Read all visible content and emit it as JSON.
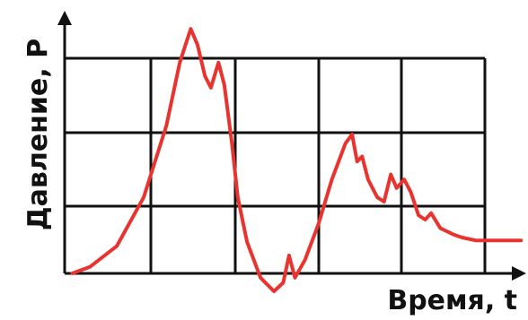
{
  "chart_data": {
    "type": "line",
    "xlabel": "Время, t",
    "ylabel": "Давление, P",
    "color": "#e8332f",
    "xlim": [
      0,
      5
    ],
    "ylim": [
      0,
      3
    ],
    "grid": true,
    "x": [
      0.09,
      0.3,
      0.62,
      0.94,
      1.21,
      1.37,
      1.5,
      1.58,
      1.67,
      1.74,
      1.83,
      1.9,
      1.99,
      2.06,
      2.17,
      2.33,
      2.49,
      2.6,
      2.67,
      2.74,
      2.86,
      3.02,
      3.18,
      3.34,
      3.42,
      3.48,
      3.54,
      3.61,
      3.72,
      3.8,
      3.88,
      3.95,
      4.04,
      4.12,
      4.21,
      4.29,
      4.36,
      4.47,
      4.63,
      4.73,
      4.89,
      5.05,
      5.43
    ],
    "values": [
      0.0,
      0.09,
      0.38,
      1.06,
      2.06,
      2.94,
      3.41,
      3.19,
      2.75,
      2.59,
      2.94,
      2.63,
      1.81,
      1.06,
      0.44,
      -0.06,
      -0.25,
      -0.13,
      0.25,
      -0.06,
      0.19,
      0.69,
      1.31,
      1.81,
      1.94,
      1.56,
      1.63,
      1.31,
      1.06,
      1.0,
      1.38,
      1.19,
      1.31,
      1.13,
      0.81,
      0.75,
      0.84,
      0.63,
      0.54,
      0.5,
      0.46,
      0.46,
      0.46
    ]
  }
}
